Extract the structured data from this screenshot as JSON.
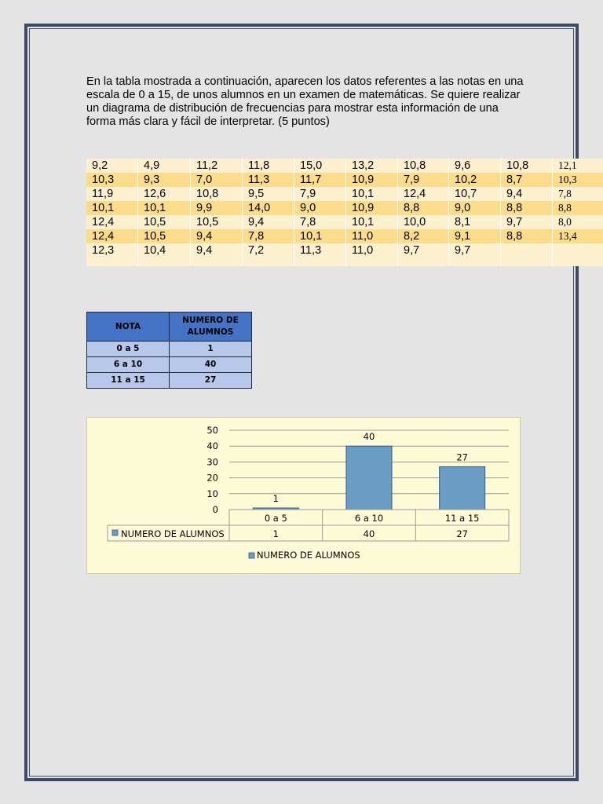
{
  "intro_text": "En la tabla mostrada a continuación, aparecen los datos referentes a las notas en una escala de 0 a 15, de unos alumnos en un examen de matemáticas. Se quiere realizar un diagrama de distribución de frecuencias para mostrar esta información de una forma más clara y fácil de interpretar. (5 puntos)",
  "grades_table": {
    "rows": [
      [
        "9,2",
        "4,9",
        "11,2",
        "11,8",
        "15,0",
        "13,2",
        "10,8",
        "9,6",
        "10,8",
        "12,1"
      ],
      [
        "10,3",
        "9,3",
        "7,0",
        "11,3",
        "11,7",
        "10,9",
        "7,9",
        "10,2",
        "8,7",
        "10,3"
      ],
      [
        "11,9",
        "12,6",
        "10,8",
        "9,5",
        "7,9",
        "10,1",
        "12,4",
        "10,7",
        "9,4",
        "7,8"
      ],
      [
        "10,1",
        "10,1",
        "9,9",
        "14,0",
        "9,0",
        "10,9",
        "8,8",
        "9,0",
        "8,8",
        "8,8"
      ],
      [
        "12,4",
        "10,5",
        "10,5",
        "9,4",
        "7,8",
        "10,1",
        "10,0",
        "8,1",
        "9,7",
        "8,0"
      ],
      [
        "12,4",
        "10,5",
        "9,4",
        "7,8",
        "10,1",
        "11,0",
        "8,2",
        "9,1",
        "8,8",
        "13,4"
      ],
      [
        "12,3",
        "10,4",
        "9,4",
        "7,2",
        "11,3",
        "11,0",
        "9,7",
        "9,7",
        "",
        ""
      ]
    ],
    "row_colors": [
      "#fdf0cf",
      "#fbdc8b"
    ]
  },
  "summary_table": {
    "header_nota": "NOTA",
    "header_alumnos": "NUMERO DE ALUMNOS",
    "rows": [
      {
        "nota": "0 a 5",
        "alumnos": "1"
      },
      {
        "nota": "6 a 10",
        "alumnos": "40"
      },
      {
        "nota": "11 a 15",
        "alumnos": "27"
      }
    ],
    "header_color": "#4472c4",
    "cell_color": "#b7c8ea"
  },
  "chart_data": {
    "type": "bar",
    "categories": [
      "0 a 5",
      "6 a 10",
      "11 a 15"
    ],
    "series": [
      {
        "name": "NUMERO DE ALUMNOS",
        "values": [
          1,
          40,
          27
        ]
      }
    ],
    "data_labels": [
      "1",
      "40",
      "27"
    ],
    "y_ticks": [
      "0",
      "10",
      "20",
      "30",
      "40",
      "50"
    ],
    "ylim": [
      0,
      50
    ],
    "grid": true,
    "data_table": true,
    "legend_position": "bottom",
    "bar_color": "#6b9cc4",
    "background_color": "#fdfbd6"
  }
}
